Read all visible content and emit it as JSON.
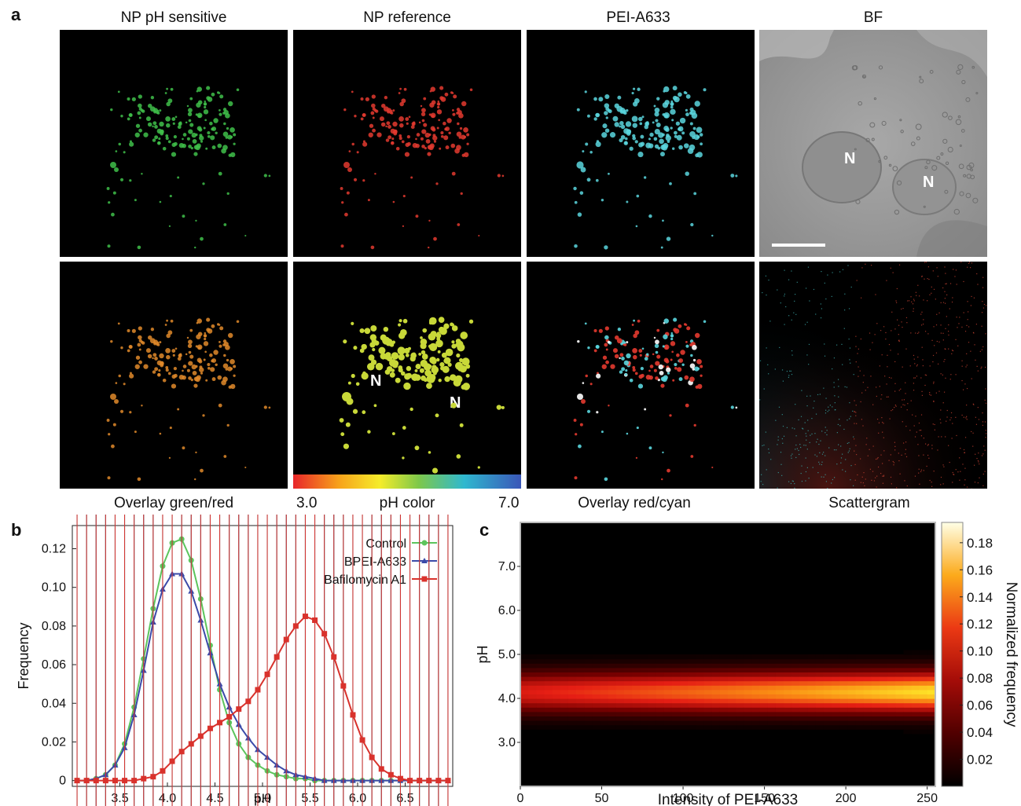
{
  "panel_labels": {
    "a": "a",
    "b": "b",
    "c": "c"
  },
  "panel_a": {
    "top_titles": [
      "NP pH sensitive",
      "NP reference",
      "PEI-A633",
      "BF"
    ],
    "bottom_titles": [
      "Overlay green/red",
      "pH color",
      "Overlay red/cyan",
      "Scattergram"
    ],
    "ph_scale_min": "3.0",
    "ph_scale_max": "7.0",
    "nucleus_label": "N",
    "colors": {
      "green": "#3fbf4a",
      "red": "#e33a2f",
      "cyan": "#5ad6de",
      "orange": "#e08a2a",
      "yellowgreen": "#c8d838"
    }
  },
  "chart_data": [
    {
      "type": "line",
      "panel": "b",
      "xlabel": "pH",
      "ylabel": "Frequency",
      "xticks": [
        "3.5",
        "4.0",
        "4.5",
        "5.0",
        "5.5",
        "6.0",
        "6.5"
      ],
      "yticks": [
        "0",
        "0.02",
        "0.04",
        "0.06",
        "0.08",
        "0.10",
        "0.12"
      ],
      "xlim": [
        3.0,
        7.0
      ],
      "ylim": [
        -0.003,
        0.132
      ],
      "legend_position": "top-right",
      "x": [
        3.05,
        3.15,
        3.25,
        3.35,
        3.45,
        3.55,
        3.65,
        3.75,
        3.85,
        3.95,
        4.05,
        4.15,
        4.25,
        4.35,
        4.45,
        4.55,
        4.65,
        4.75,
        4.85,
        4.95,
        5.05,
        5.15,
        5.25,
        5.35,
        5.45,
        5.55,
        5.65,
        5.75,
        5.85,
        5.95,
        6.05,
        6.15,
        6.25,
        6.35,
        6.45,
        6.55,
        6.65,
        6.75,
        6.85,
        6.95
      ],
      "series": [
        {
          "name": "Control",
          "color": "#5cc45c",
          "marker": "circle",
          "values": [
            0.0,
            0.0,
            0.001,
            0.003,
            0.008,
            0.019,
            0.038,
            0.063,
            0.089,
            0.111,
            0.123,
            0.125,
            0.114,
            0.094,
            0.07,
            0.047,
            0.03,
            0.019,
            0.012,
            0.008,
            0.005,
            0.003,
            0.002,
            0.001,
            0.001,
            0.0,
            0.0,
            0.0,
            0.0,
            0.0,
            0.0,
            0.0,
            0.0,
            0.0,
            0.0,
            0.0,
            0.0,
            0.0,
            0.0,
            0.0
          ]
        },
        {
          "name": "BPEI-A633",
          "color": "#3b4aa8",
          "marker": "triangle",
          "values": [
            0.0,
            0.0,
            0.001,
            0.003,
            0.008,
            0.017,
            0.034,
            0.057,
            0.082,
            0.099,
            0.107,
            0.107,
            0.098,
            0.083,
            0.066,
            0.05,
            0.038,
            0.029,
            0.022,
            0.016,
            0.012,
            0.008,
            0.005,
            0.003,
            0.002,
            0.001,
            0.0,
            0.0,
            0.0,
            0.0,
            0.0,
            0.0,
            0.0,
            0.0,
            0.0,
            0.0,
            0.0,
            0.0,
            0.0,
            0.0
          ]
        },
        {
          "name": "Bafilomycin A1",
          "color": "#d9322c",
          "marker": "square",
          "values": [
            0.0,
            0.0,
            0.0,
            0.0,
            0.0,
            0.0,
            0.0,
            0.001,
            0.002,
            0.005,
            0.01,
            0.015,
            0.019,
            0.023,
            0.027,
            0.03,
            0.033,
            0.037,
            0.041,
            0.047,
            0.055,
            0.064,
            0.073,
            0.08,
            0.085,
            0.083,
            0.076,
            0.064,
            0.049,
            0.034,
            0.021,
            0.012,
            0.006,
            0.003,
            0.001,
            0.0,
            0.0,
            0.0,
            0.0,
            0.0
          ]
        }
      ]
    },
    {
      "type": "heatmap",
      "panel": "c",
      "xlabel": "Intensity of PEI-A633",
      "ylabel": "pH",
      "xticks": [
        "0",
        "50",
        "100",
        "150",
        "200",
        "250"
      ],
      "yticks": [
        "3.0",
        "4.0",
        "5.0",
        "6.0",
        "7.0"
      ],
      "xlim": [
        0,
        255
      ],
      "ylim": [
        2.0,
        8.0
      ],
      "colorbar_label": "Normalized frequency",
      "colorbar_ticks": [
        "0.02",
        "0.04",
        "0.06",
        "0.08",
        "0.10",
        "0.12",
        "0.14",
        "0.16",
        "0.18"
      ],
      "band_center_ph": 4.15,
      "band_peak_start": 0.1,
      "band_peak_end": 0.17
    }
  ]
}
